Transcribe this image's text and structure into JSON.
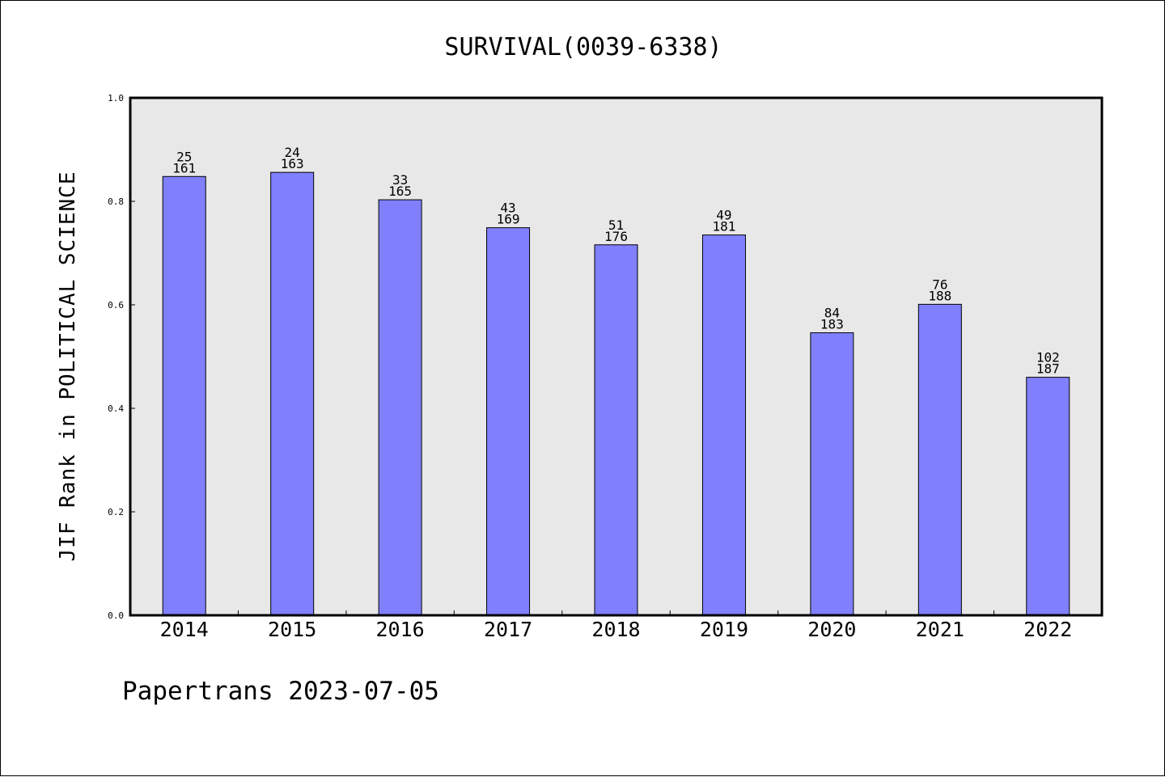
{
  "chart_data": {
    "type": "bar",
    "title": "SURVIVAL(0039-6338)",
    "xlabel": "",
    "ylabel": "JIF Rank in POLITICAL SCIENCE",
    "ylim": [
      0,
      1.0
    ],
    "yticks": [
      "0.0",
      "0.2",
      "0.4",
      "0.6",
      "0.8",
      "1.0"
    ],
    "grid": false,
    "categories": [
      "2014",
      "2015",
      "2016",
      "2017",
      "2018",
      "2019",
      "2020",
      "2021",
      "2022"
    ],
    "values": [
      0.848,
      0.856,
      0.803,
      0.749,
      0.716,
      0.735,
      0.546,
      0.601,
      0.46
    ],
    "labels": [
      [
        "25",
        "161"
      ],
      [
        "24",
        "163"
      ],
      [
        "33",
        "165"
      ],
      [
        "43",
        "169"
      ],
      [
        "51",
        "176"
      ],
      [
        "49",
        "181"
      ],
      [
        "84",
        "183"
      ],
      [
        "76",
        "188"
      ],
      [
        "102",
        "187"
      ]
    ],
    "colors": {
      "bar": "#8080ff",
      "plot_background": "#e8e8e8"
    }
  },
  "footer": {
    "text": "Papertrans 2023-07-05"
  }
}
